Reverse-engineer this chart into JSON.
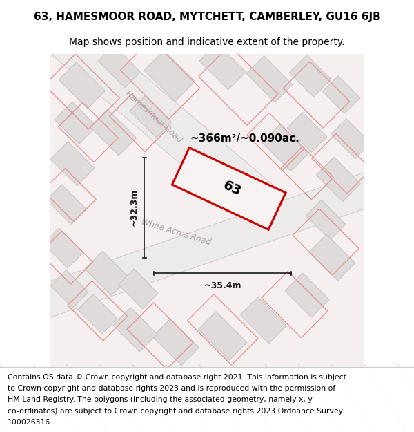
{
  "title": "63, HAMESMOOR ROAD, MYTCHETT, CAMBERLEY, GU16 6JB",
  "subtitle": "Map shows position and indicative extent of the property.",
  "area_text": "~366m²/~0.090ac.",
  "width_text": "~35.4m",
  "height_text": "~32.3m",
  "number_text": "63",
  "road1": "Hamesmoor Road",
  "road2": "White Acres Road",
  "footer_lines": [
    "Contains OS data © Crown copyright and database right 2021. This information is subject",
    "to Crown copyright and database rights 2023 and is reproduced with the permission of",
    "HM Land Registry. The polygons (including the associated geometry, namely x, y",
    "co-ordinates) are subject to Crown copyright and database rights 2023 Ordnance Survey",
    "100026316."
  ],
  "map_bg": "#f5efef",
  "block_fc": "#e0dbdb",
  "block_ec": "#c8c3c3",
  "road_fc": "#edeaea",
  "road_ec": "#cfc8c8",
  "pink_ec": "#e09898",
  "red_ec": "#cc0000",
  "road_label_color": "#aca5a5",
  "dim_color": "#1a1a1a",
  "title_fontsize": 11,
  "subtitle_fontsize": 10,
  "footer_fontsize": 7.8,
  "number_fontsize": 14,
  "area_fontsize": 11,
  "dim_fontsize": 9,
  "road_label_fontsize": 8.5
}
